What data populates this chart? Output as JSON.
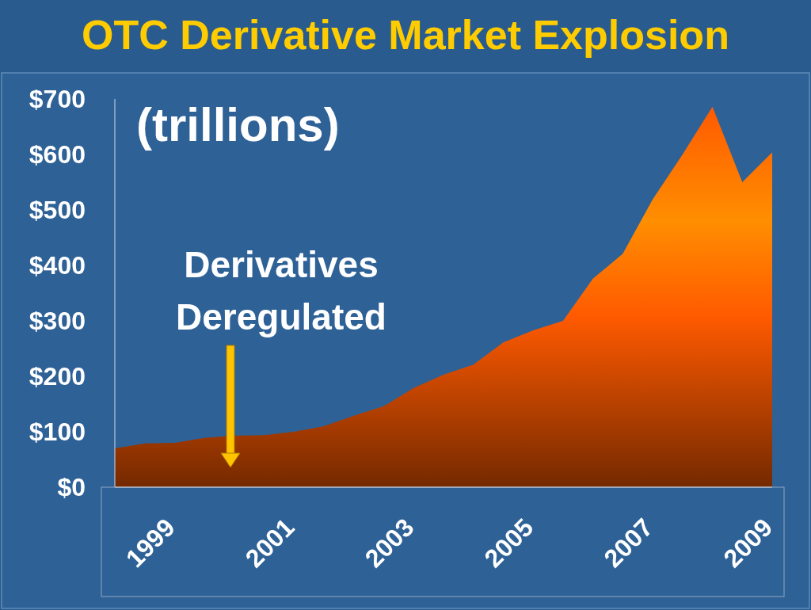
{
  "chart_data": {
    "type": "area",
    "title": "OTC Derivative Market Explosion",
    "x": [
      1998.5,
      1999,
      1999.5,
      2000,
      2000.5,
      2001,
      2001.5,
      2002,
      2002.5,
      2003,
      2003.5,
      2004,
      2004.5,
      2005,
      2005.5,
      2006,
      2006.5,
      2007,
      2007.5,
      2008,
      2008.5,
      2009,
      2009.5
    ],
    "series": [
      {
        "color": "#ff5a00",
        "values": [
          70,
          79,
          80,
          89,
          93,
          94,
          100,
          110,
          129,
          146,
          179,
          203,
          221,
          261,
          283,
          300,
          376,
          421,
          519,
          600,
          686,
          550,
          604
        ]
      }
    ],
    "xlim": [
      1998.5,
      2009.5
    ],
    "xticks": [
      1999,
      2001,
      2003,
      2005,
      2007,
      2009
    ],
    "ylim": [
      0,
      700
    ],
    "yticks": [
      {
        "value": 0,
        "label": "$0"
      },
      {
        "value": 100,
        "label": "$100"
      },
      {
        "value": 200,
        "label": "$200"
      },
      {
        "value": 300,
        "label": "$300"
      },
      {
        "value": 400,
        "label": "$400"
      },
      {
        "value": 500,
        "label": "$500"
      },
      {
        "value": 600,
        "label": "$600"
      },
      {
        "value": 700,
        "label": "$700"
      }
    ],
    "annotations": [
      "(trillions)",
      "Derivatives Deregulated"
    ],
    "grid": false
  }
}
